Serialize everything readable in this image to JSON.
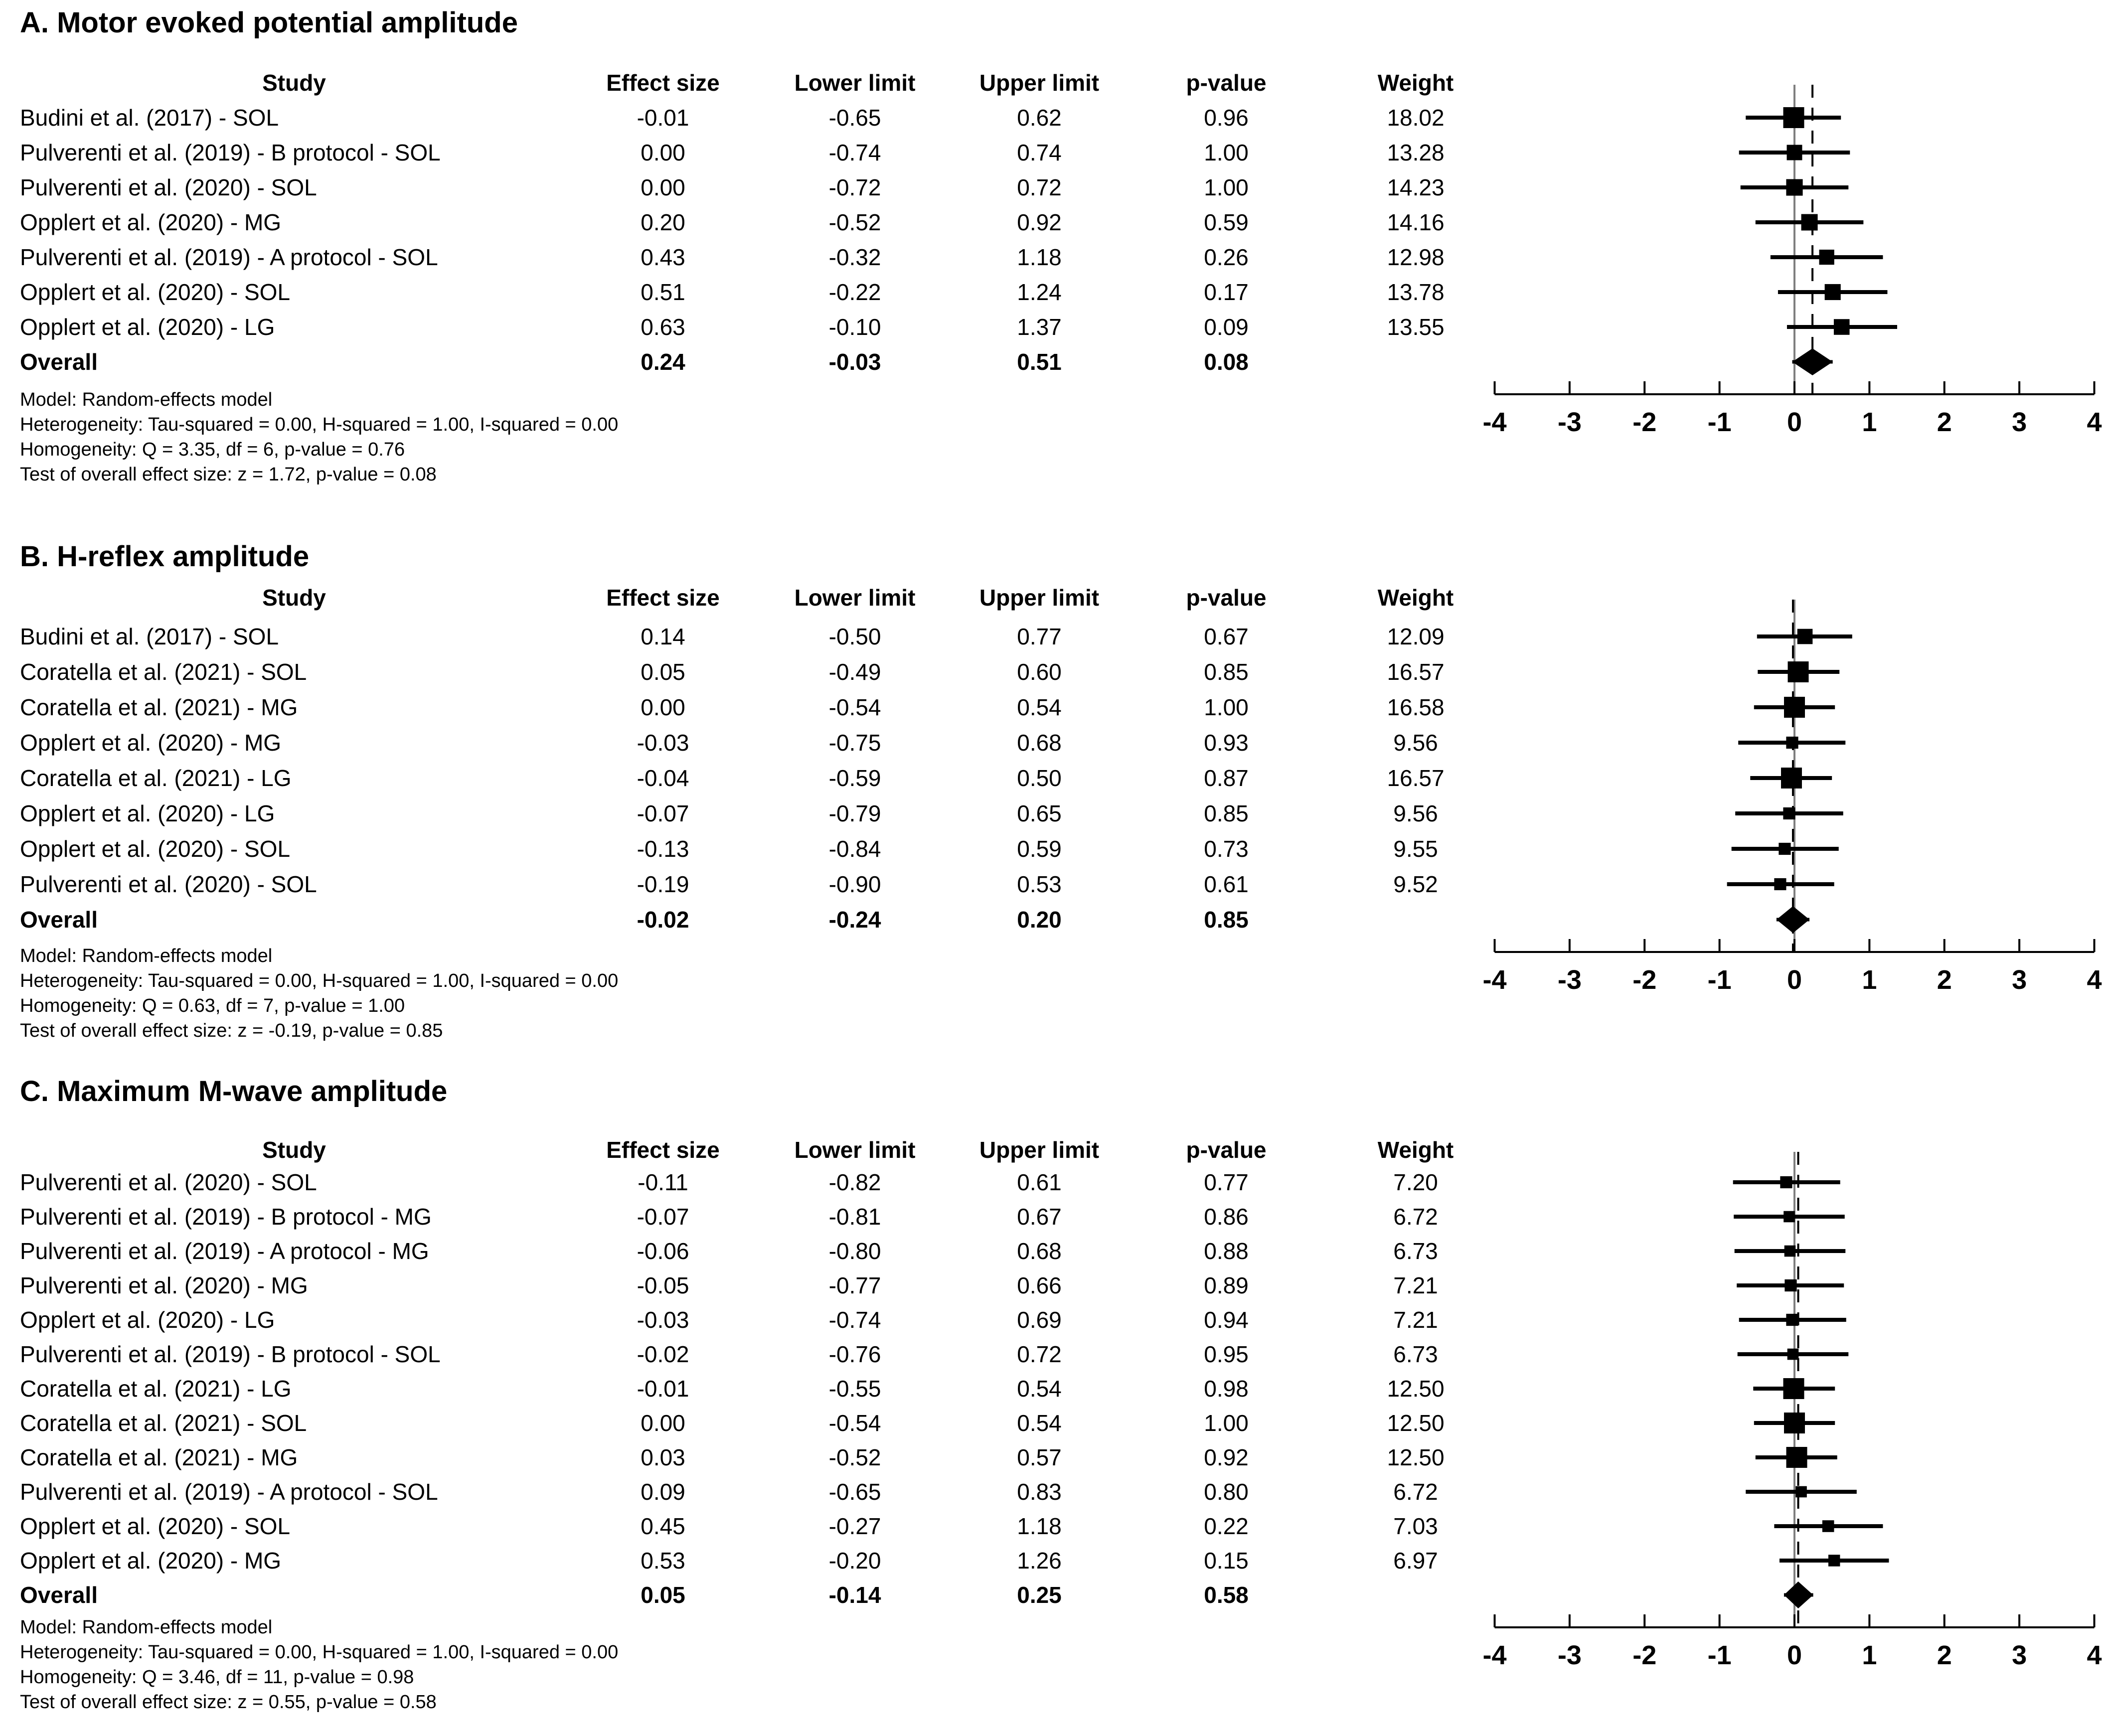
{
  "columns": [
    "Study",
    "Effect size",
    "Lower limit",
    "Upper limit",
    "p-value",
    "Weight"
  ],
  "axis": {
    "min": -4,
    "max": 4,
    "tick_labels": [
      "-4",
      "-3",
      "-2",
      "-1",
      "0",
      "1",
      "2",
      "3",
      "4"
    ]
  },
  "colors": {
    "text": "#000000",
    "background": "#ffffff",
    "marker": "#000000",
    "zero_line": "#7f7f7f",
    "overall_dashed_line": "#000000"
  },
  "chart_data": [
    {
      "type": "forest",
      "panel": "A",
      "title": "A. Motor evoked potential amplitude",
      "xlim": [
        -4,
        4
      ],
      "studies": [
        {
          "label": "Budini et al. (2017) - SOL",
          "effect": "-0.01",
          "lower": "-0.65",
          "upper": "0.62",
          "p": "0.96",
          "weight": "18.02"
        },
        {
          "label": "Pulverenti et al. (2019) - B protocol - SOL",
          "effect": "0.00",
          "lower": "-0.74",
          "upper": "0.74",
          "p": "1.00",
          "weight": "13.28"
        },
        {
          "label": "Pulverenti et al. (2020) - SOL",
          "effect": "0.00",
          "lower": "-0.72",
          "upper": "0.72",
          "p": "1.00",
          "weight": "14.23"
        },
        {
          "label": "Opplert et al. (2020) - MG",
          "effect": "0.20",
          "lower": "-0.52",
          "upper": "0.92",
          "p": "0.59",
          "weight": "14.16"
        },
        {
          "label": "Pulverenti et al. (2019) - A protocol - SOL",
          "effect": "0.43",
          "lower": "-0.32",
          "upper": "1.18",
          "p": "0.26",
          "weight": "12.98"
        },
        {
          "label": "Opplert et al. (2020) - SOL",
          "effect": "0.51",
          "lower": "-0.22",
          "upper": "1.24",
          "p": "0.17",
          "weight": "13.78"
        },
        {
          "label": "Opplert et al. (2020) - LG",
          "effect": "0.63",
          "lower": "-0.10",
          "upper": "1.37",
          "p": "0.09",
          "weight": "13.55"
        }
      ],
      "overall": {
        "label": "Overall",
        "effect": "0.24",
        "lower": "-0.03",
        "upper": "0.51",
        "p": "0.08",
        "weight": ""
      },
      "notes": [
        "Model: Random-effects model",
        "Heterogeneity: Tau-squared = 0.00, H-squared = 1.00, I-squared = 0.00",
        "Homogeneity: Q = 3.35, df = 6, p-value = 0.76",
        "Test of overall effect size: z = 1.72, p-value = 0.08"
      ]
    },
    {
      "type": "forest",
      "panel": "B",
      "title": "B. H-reflex amplitude",
      "xlim": [
        -4,
        4
      ],
      "studies": [
        {
          "label": "Budini et al. (2017) - SOL",
          "effect": "0.14",
          "lower": "-0.50",
          "upper": "0.77",
          "p": "0.67",
          "weight": "12.09"
        },
        {
          "label": "Coratella et al. (2021) - SOL",
          "effect": "0.05",
          "lower": "-0.49",
          "upper": "0.60",
          "p": "0.85",
          "weight": "16.57"
        },
        {
          "label": "Coratella et al. (2021) - MG",
          "effect": "0.00",
          "lower": "-0.54",
          "upper": "0.54",
          "p": "1.00",
          "weight": "16.58"
        },
        {
          "label": "Opplert et al. (2020) - MG",
          "effect": "-0.03",
          "lower": "-0.75",
          "upper": "0.68",
          "p": "0.93",
          "weight": "9.56"
        },
        {
          "label": "Coratella et al. (2021) - LG",
          "effect": "-0.04",
          "lower": "-0.59",
          "upper": "0.50",
          "p": "0.87",
          "weight": "16.57"
        },
        {
          "label": "Opplert et al. (2020) - LG",
          "effect": "-0.07",
          "lower": "-0.79",
          "upper": "0.65",
          "p": "0.85",
          "weight": "9.56"
        },
        {
          "label": "Opplert et al. (2020) - SOL",
          "effect": "-0.13",
          "lower": "-0.84",
          "upper": "0.59",
          "p": "0.73",
          "weight": "9.55"
        },
        {
          "label": "Pulverenti et al. (2020) - SOL",
          "effect": "-0.19",
          "lower": "-0.90",
          "upper": "0.53",
          "p": "0.61",
          "weight": "9.52"
        }
      ],
      "overall": {
        "label": "Overall",
        "effect": "-0.02",
        "lower": "-0.24",
        "upper": "0.20",
        "p": "0.85",
        "weight": ""
      },
      "notes": [
        "Model: Random-effects model",
        "Heterogeneity: Tau-squared = 0.00, H-squared = 1.00, I-squared = 0.00",
        "Homogeneity: Q = 0.63, df = 7, p-value = 1.00",
        "Test of overall effect size: z = -0.19, p-value = 0.85"
      ]
    },
    {
      "type": "forest",
      "panel": "C",
      "title": "C. Maximum M-wave amplitude",
      "xlim": [
        -4,
        4
      ],
      "studies": [
        {
          "label": "Pulverenti et al. (2020) - SOL",
          "effect": "-0.11",
          "lower": "-0.82",
          "upper": "0.61",
          "p": "0.77",
          "weight": "7.20"
        },
        {
          "label": "Pulverenti et al. (2019) - B protocol - MG",
          "effect": "-0.07",
          "lower": "-0.81",
          "upper": "0.67",
          "p": "0.86",
          "weight": "6.72"
        },
        {
          "label": "Pulverenti et al. (2019) - A protocol - MG",
          "effect": "-0.06",
          "lower": "-0.80",
          "upper": "0.68",
          "p": "0.88",
          "weight": "6.73"
        },
        {
          "label": "Pulverenti et al. (2020) - MG",
          "effect": "-0.05",
          "lower": "-0.77",
          "upper": "0.66",
          "p": "0.89",
          "weight": "7.21"
        },
        {
          "label": "Opplert et al. (2020) - LG",
          "effect": "-0.03",
          "lower": "-0.74",
          "upper": "0.69",
          "p": "0.94",
          "weight": "7.21"
        },
        {
          "label": "Pulverenti et al. (2019) - B protocol - SOL",
          "effect": "-0.02",
          "lower": "-0.76",
          "upper": "0.72",
          "p": "0.95",
          "weight": "6.73"
        },
        {
          "label": "Coratella et al. (2021) - LG",
          "effect": "-0.01",
          "lower": "-0.55",
          "upper": "0.54",
          "p": "0.98",
          "weight": "12.50"
        },
        {
          "label": "Coratella et al. (2021) - SOL",
          "effect": "0.00",
          "lower": "-0.54",
          "upper": "0.54",
          "p": "1.00",
          "weight": "12.50"
        },
        {
          "label": "Coratella et al. (2021) - MG",
          "effect": "0.03",
          "lower": "-0.52",
          "upper": "0.57",
          "p": "0.92",
          "weight": "12.50"
        },
        {
          "label": "Pulverenti et al. (2019) - A protocol - SOL",
          "effect": "0.09",
          "lower": "-0.65",
          "upper": "0.83",
          "p": "0.80",
          "weight": "6.72"
        },
        {
          "label": "Opplert et al. (2020) - SOL",
          "effect": "0.45",
          "lower": "-0.27",
          "upper": "1.18",
          "p": "0.22",
          "weight": "7.03"
        },
        {
          "label": "Opplert et al. (2020) - MG",
          "effect": "0.53",
          "lower": "-0.20",
          "upper": "1.26",
          "p": "0.15",
          "weight": "6.97"
        }
      ],
      "overall": {
        "label": "Overall",
        "effect": "0.05",
        "lower": "-0.14",
        "upper": "0.25",
        "p": "0.58",
        "weight": ""
      },
      "notes": [
        "Model: Random-effects model",
        "Heterogeneity: Tau-squared = 0.00, H-squared = 1.00, I-squared = 0.00",
        "Homogeneity: Q = 3.46, df = 11, p-value = 0.98",
        "Test of overall effect size: z = 0.55, p-value = 0.58"
      ]
    }
  ]
}
